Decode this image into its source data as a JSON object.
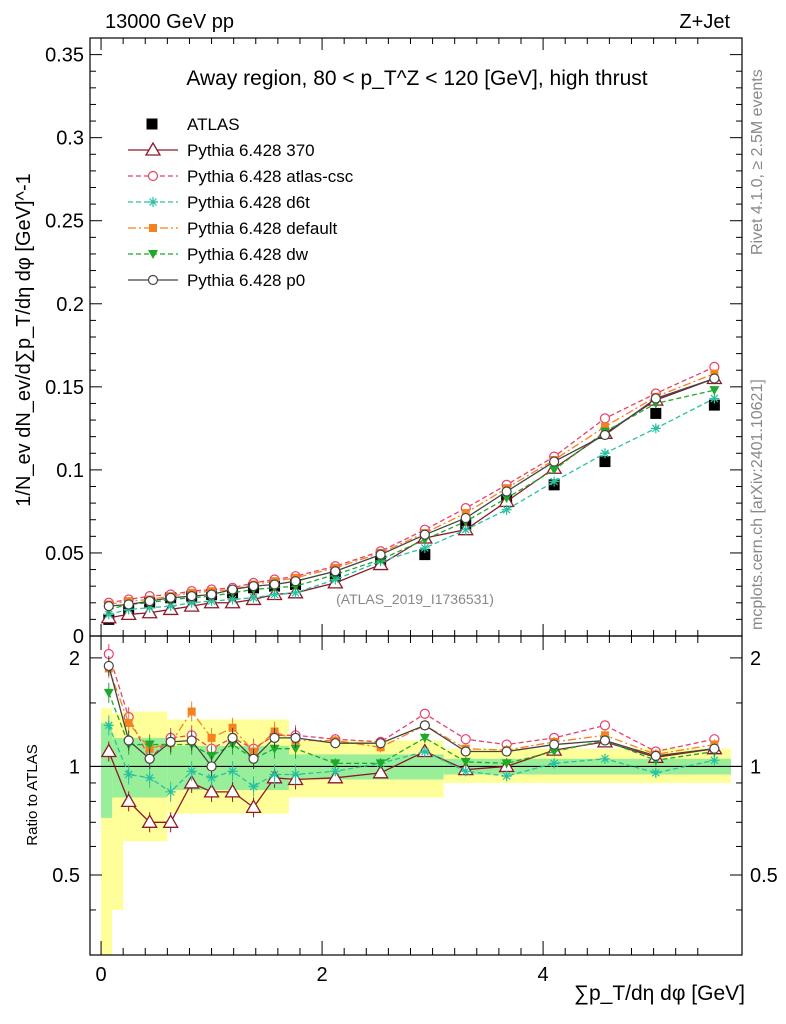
{
  "header": {
    "left": "13000 GeV pp",
    "right": "Z+Jet"
  },
  "side_labels": {
    "rivet": "Rivet 4.1.0, ≥ 2.5M events",
    "mcplots": "mcplots.cern.ch [arXiv:2401.10621]"
  },
  "colors": {
    "ATLAS": "#000000",
    "p370": "#8b1a2b",
    "atlascsc": "#e8416a",
    "d6t": "#26c2a0",
    "default": "#f58220",
    "dw": "#1fa82a",
    "p0": "#444444",
    "band_outer": "#ffff99",
    "band_inner": "#99ee99"
  },
  "chart_data": [
    {
      "type": "line",
      "title": "Away region, 80 < p_T^Z < 120 [GeV], high thrust",
      "watermark": "(ATLAS_2019_I1736531)",
      "ylabel": "1/N_ev dN_ev/d∑p_T/dη dφ [GeV]^-1",
      "ylim": [
        0,
        0.36
      ],
      "xlim": [
        -0.1,
        5.8
      ],
      "yticks": [
        "0",
        "0.05",
        "0.1",
        "0.15",
        "0.2",
        "0.25",
        "0.3",
        "0.35"
      ],
      "x": [
        0.07,
        0.25,
        0.44,
        0.63,
        0.82,
        1.0,
        1.19,
        1.38,
        1.57,
        1.76,
        2.12,
        2.53,
        2.93,
        3.3,
        3.67,
        4.1,
        4.56,
        5.02,
        5.55
      ],
      "series": [
        {
          "name": "ATLAS",
          "values": [
            0.01,
            0.016,
            0.02,
            0.023,
            0.024,
            0.025,
            0.026,
            0.029,
            0.03,
            0.031,
            0.036,
            0.045,
            0.049,
            0.067,
            0.082,
            0.091,
            0.105,
            0.134,
            0.139
          ]
        },
        {
          "name": "Pythia 6.428 370",
          "values": [
            0.011,
            0.013,
            0.014,
            0.016,
            0.018,
            0.02,
            0.02,
            0.022,
            0.025,
            0.026,
            0.032,
            0.043,
            0.059,
            0.064,
            0.081,
            0.101,
            0.122,
            0.142,
            0.155
          ]
        },
        {
          "name": "Pythia 6.428 atlas-csc",
          "values": [
            0.02,
            0.022,
            0.024,
            0.025,
            0.027,
            0.028,
            0.029,
            0.032,
            0.034,
            0.036,
            0.042,
            0.051,
            0.064,
            0.077,
            0.091,
            0.108,
            0.131,
            0.146,
            0.162
          ]
        },
        {
          "name": "Pythia 6.428 d6t",
          "values": [
            0.013,
            0.016,
            0.017,
            0.018,
            0.02,
            0.021,
            0.022,
            0.023,
            0.025,
            0.026,
            0.034,
            0.045,
            0.053,
            0.064,
            0.076,
            0.093,
            0.11,
            0.125,
            0.143
          ]
        },
        {
          "name": "Pythia 6.428 default",
          "values": [
            0.019,
            0.021,
            0.022,
            0.024,
            0.026,
            0.027,
            0.028,
            0.031,
            0.033,
            0.035,
            0.041,
            0.05,
            0.062,
            0.074,
            0.089,
            0.106,
            0.126,
            0.144,
            0.158
          ]
        },
        {
          "name": "Pythia 6.428 dw",
          "values": [
            0.016,
            0.019,
            0.02,
            0.022,
            0.023,
            0.024,
            0.026,
            0.028,
            0.029,
            0.03,
            0.037,
            0.046,
            0.058,
            0.069,
            0.083,
            0.1,
            0.123,
            0.14,
            0.148
          ]
        },
        {
          "name": "Pythia 6.428 p0",
          "values": [
            0.018,
            0.019,
            0.021,
            0.023,
            0.024,
            0.025,
            0.028,
            0.03,
            0.031,
            0.033,
            0.039,
            0.049,
            0.061,
            0.071,
            0.087,
            0.105,
            0.121,
            0.143,
            0.155
          ]
        }
      ]
    },
    {
      "type": "line",
      "ylabel": "Ratio to ATLAS",
      "xlabel": "∑p_T/dη dφ [GeV]",
      "ylim": [
        0.3,
        2.3
      ],
      "xlim": [
        -0.1,
        5.8
      ],
      "yticks": [
        "0.5",
        "1",
        "2"
      ],
      "xticks": [
        "0",
        "2",
        "4"
      ],
      "x": [
        0.07,
        0.25,
        0.44,
        0.63,
        0.82,
        1.0,
        1.19,
        1.38,
        1.57,
        1.76,
        2.12,
        2.53,
        2.93,
        3.3,
        3.67,
        4.1,
        4.56,
        5.02,
        5.55
      ],
      "band_outer": [
        [
          0.0,
          0.1,
          0.3
        ],
        [
          0.1,
          0.2,
          0.4
        ],
        [
          0.2,
          0.6,
          0.62
        ],
        [
          0.6,
          1.7,
          0.74
        ],
        [
          1.7,
          3.1,
          0.82
        ],
        [
          3.1,
          5.7,
          0.9
        ]
      ],
      "band_outer_hi": [
        [
          0.0,
          0.1,
          1.45
        ],
        [
          0.1,
          0.2,
          1.4
        ],
        [
          0.2,
          0.6,
          1.42
        ],
        [
          0.6,
          1.7,
          1.35
        ],
        [
          1.7,
          3.1,
          1.18
        ],
        [
          3.1,
          5.7,
          1.12
        ]
      ],
      "band_inner": [
        [
          0.0,
          0.1,
          0.72
        ],
        [
          0.1,
          0.6,
          0.82
        ],
        [
          0.6,
          1.7,
          0.86
        ],
        [
          1.7,
          3.1,
          0.92
        ],
        [
          3.1,
          5.7,
          0.95
        ]
      ],
      "band_inner_hi": [
        [
          0.0,
          0.1,
          1.32
        ],
        [
          0.1,
          0.6,
          1.2
        ],
        [
          0.6,
          1.7,
          1.14
        ],
        [
          1.7,
          3.1,
          1.08
        ],
        [
          3.1,
          5.7,
          1.05
        ]
      ],
      "series": [
        {
          "name": "Pythia 6.428 370",
          "values": [
            1.1,
            0.8,
            0.7,
            0.7,
            0.9,
            0.85,
            0.85,
            0.77,
            0.93,
            0.92,
            0.93,
            0.96,
            1.1,
            0.98,
            1.0,
            1.11,
            1.17,
            1.06,
            1.12
          ]
        },
        {
          "name": "Pythia 6.428 atlas-csc",
          "values": [
            2.05,
            1.37,
            1.05,
            1.2,
            1.22,
            1.12,
            1.2,
            1.12,
            1.22,
            1.22,
            1.19,
            1.17,
            1.4,
            1.19,
            1.15,
            1.2,
            1.3,
            1.1,
            1.19
          ]
        },
        {
          "name": "Pythia 6.428 d6t",
          "values": [
            1.3,
            0.95,
            0.93,
            0.85,
            0.97,
            0.93,
            0.97,
            0.88,
            0.95,
            0.95,
            0.97,
            1.02,
            1.1,
            0.97,
            0.94,
            1.02,
            1.05,
            0.96,
            1.04
          ]
        },
        {
          "name": "Pythia 6.428 default",
          "values": [
            1.87,
            1.32,
            1.12,
            1.16,
            1.42,
            1.2,
            1.28,
            1.1,
            1.25,
            1.18,
            1.18,
            1.13,
            1.3,
            1.12,
            1.11,
            1.17,
            1.22,
            1.08,
            1.15
          ]
        },
        {
          "name": "Pythia 6.428 dw",
          "values": [
            1.6,
            1.15,
            1.15,
            1.15,
            1.15,
            1.07,
            1.15,
            1.05,
            1.12,
            1.12,
            1.02,
            1.02,
            1.2,
            1.03,
            1.02,
            1.1,
            1.18,
            1.04,
            1.1
          ]
        },
        {
          "name": "Pythia 6.428 p0",
          "values": [
            1.9,
            1.18,
            1.05,
            1.17,
            1.18,
            1.0,
            1.2,
            1.05,
            1.2,
            1.2,
            1.16,
            1.16,
            1.3,
            1.1,
            1.1,
            1.15,
            1.18,
            1.07,
            1.12
          ]
        }
      ]
    }
  ]
}
